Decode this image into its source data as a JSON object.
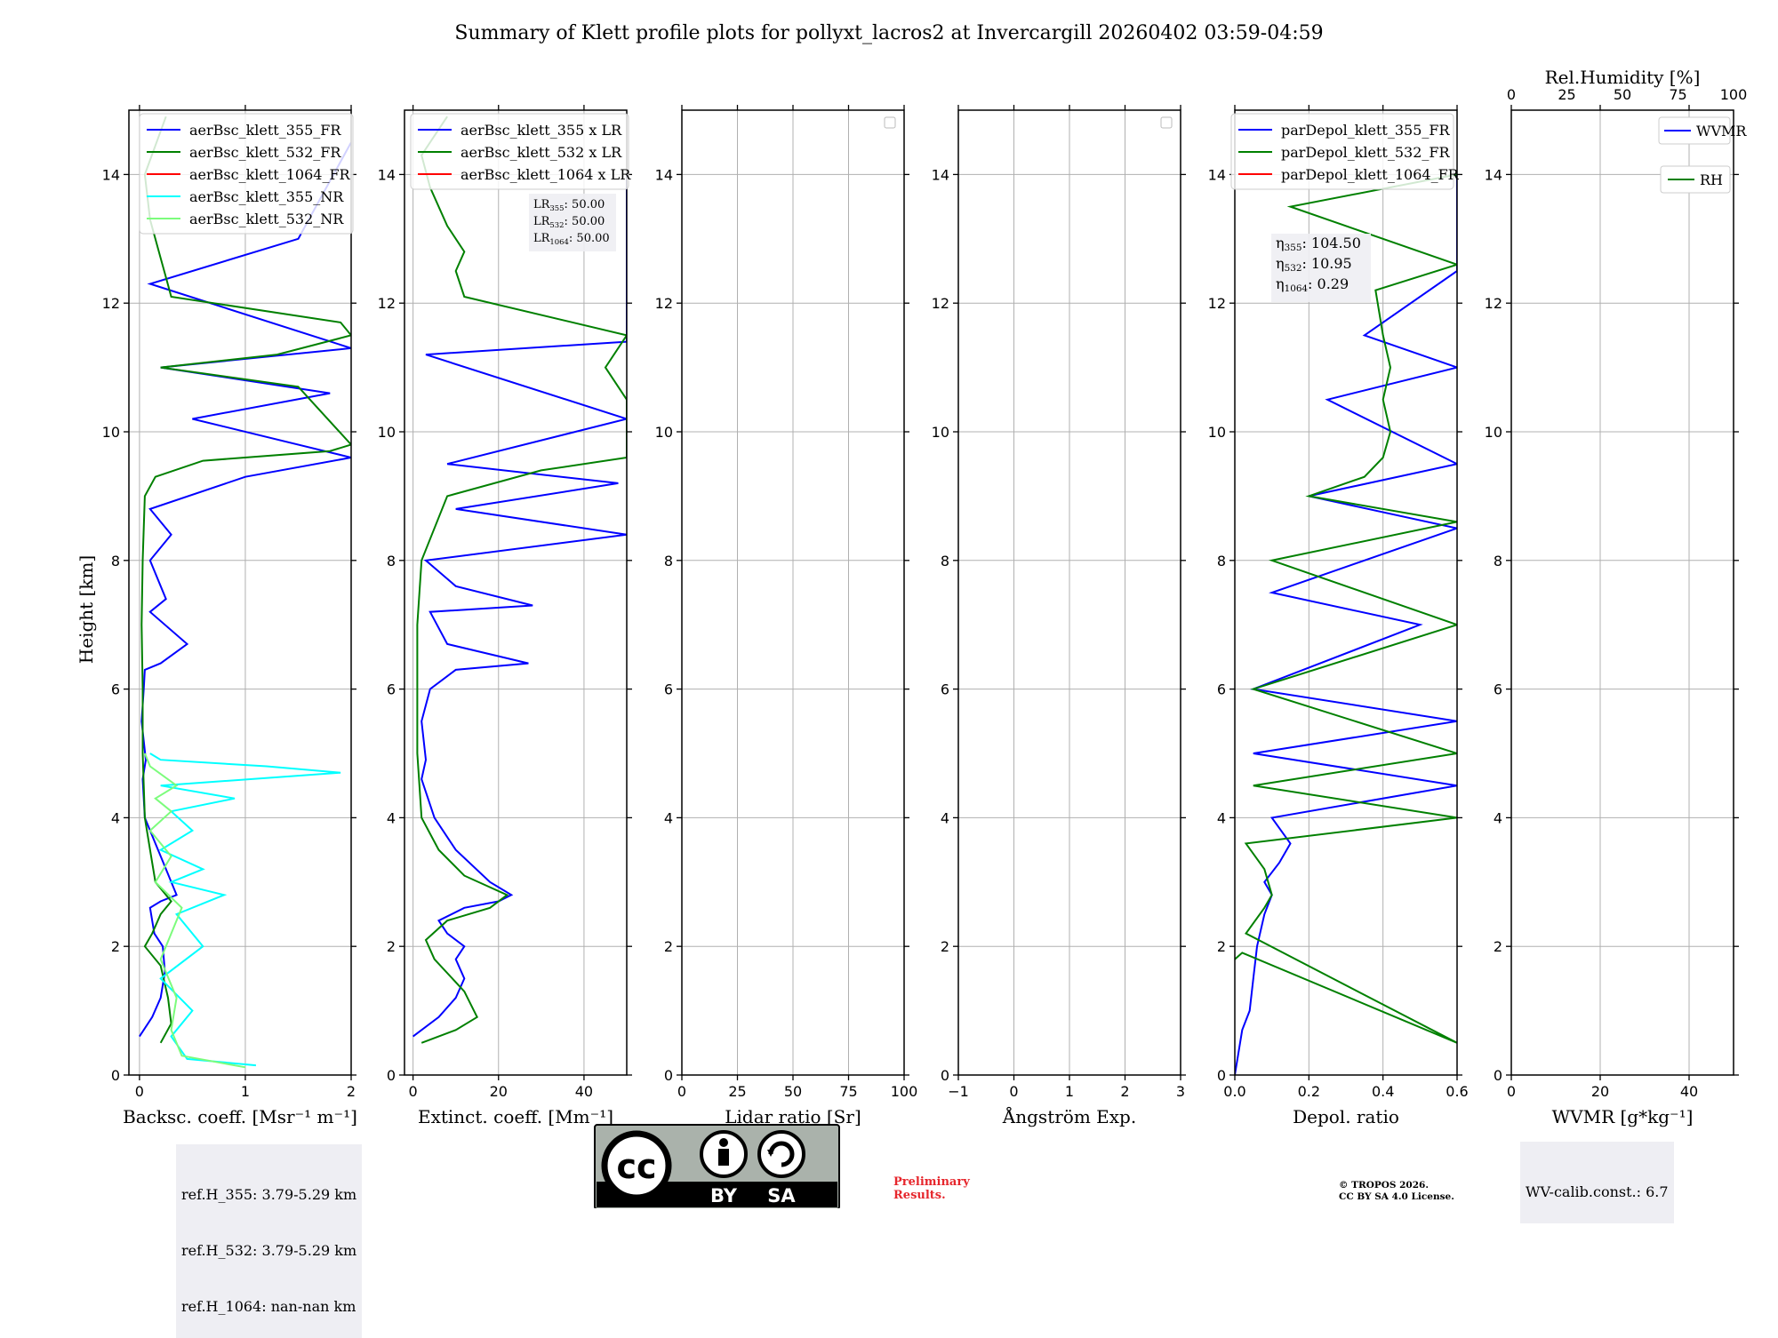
{
  "chart_data": {
    "type": "line",
    "title": "Summary of Klett profile plots for pollyxt_lacros2 at Invercargill 20260402 03:59-04:59",
    "ylabel": "Height [km]",
    "ylim": [
      0,
      15
    ],
    "yticks": [
      0,
      2,
      4,
      6,
      8,
      10,
      12,
      14
    ],
    "grid": true,
    "panels": [
      {
        "id": "bsc",
        "xlabel": "Backsc. coeff. [Msr⁻¹ m⁻¹]",
        "xlim": [
          -0.1,
          2.0
        ],
        "xticks": [
          0,
          1,
          2
        ],
        "legend": "top-right",
        "series": [
          {
            "name": "aerBsc_klett_355_FR",
            "color": "#0000ff",
            "x": [
              0.0,
              0.12,
              0.2,
              0.24,
              0.22,
              0.14,
              0.1,
              0.2,
              0.35,
              0.25,
              0.15,
              0.05,
              0.03,
              0.06,
              0.02,
              0.04,
              0.05,
              0.2,
              0.45,
              0.1,
              0.25,
              0.1,
              0.3,
              0.1,
              1.0,
              2.0,
              0.5,
              1.8,
              0.2,
              2.0,
              0.1,
              1.5,
              2.0
            ],
            "y": [
              0.6,
              0.9,
              1.2,
              1.6,
              2.0,
              2.2,
              2.6,
              2.7,
              2.8,
              3.2,
              3.6,
              4.0,
              4.6,
              4.9,
              5.5,
              6.0,
              6.3,
              6.4,
              6.7,
              7.2,
              7.4,
              8.0,
              8.4,
              8.8,
              9.3,
              9.6,
              10.2,
              10.6,
              11.0,
              11.3,
              12.3,
              13.0,
              14.5
            ]
          },
          {
            "name": "aerBsc_klett_532_FR",
            "color": "#008000",
            "x": [
              0.2,
              0.3,
              0.27,
              0.2,
              0.05,
              0.12,
              0.2,
              0.3,
              0.15,
              0.1,
              0.05,
              0.03,
              0.03,
              0.02,
              0.03,
              0.05,
              0.15,
              0.6,
              1.8,
              2.0,
              1.5,
              0.2,
              1.3,
              2.0,
              1.9,
              0.3,
              0.25,
              0.2,
              0.1,
              0.05,
              0.25
            ],
            "y": [
              0.5,
              0.8,
              1.2,
              1.7,
              2.0,
              2.2,
              2.5,
              2.7,
              3.0,
              3.5,
              4.0,
              5.0,
              6.0,
              7.0,
              8.0,
              9.0,
              9.3,
              9.55,
              9.7,
              9.8,
              10.7,
              11.0,
              11.2,
              11.5,
              11.7,
              12.1,
              12.4,
              12.7,
              13.3,
              14.0,
              14.9
            ]
          },
          {
            "name": "aerBsc_klett_1064_FR",
            "color": "#ff0000",
            "x": [],
            "y": []
          },
          {
            "name": "aerBsc_klett_355_NR",
            "color": "#00ffff",
            "x": [
              1.1,
              0.45,
              0.3,
              0.5,
              0.2,
              0.6,
              0.35,
              0.8,
              0.3,
              0.6,
              0.2,
              0.5,
              0.3,
              0.9,
              0.2,
              1.9,
              1.2,
              0.2,
              0.1
            ],
            "y": [
              0.15,
              0.25,
              0.6,
              1.0,
              1.5,
              2.0,
              2.5,
              2.8,
              3.0,
              3.2,
              3.5,
              3.8,
              4.1,
              4.3,
              4.5,
              4.7,
              4.8,
              4.9,
              5.0
            ]
          },
          {
            "name": "aerBsc_klett_532_NR",
            "color": "#7cfc7c",
            "x": [
              1.0,
              0.4,
              0.3,
              0.35,
              0.2,
              0.4,
              0.15,
              0.3,
              0.1,
              0.3,
              0.15,
              0.35,
              0.1,
              0.05
            ],
            "y": [
              0.12,
              0.3,
              0.7,
              1.2,
              1.8,
              2.6,
              3.0,
              3.4,
              3.8,
              4.1,
              4.3,
              4.5,
              4.8,
              5.0
            ]
          }
        ]
      },
      {
        "id": "ext",
        "xlabel": "Extinct. coeff. [Mm⁻¹]",
        "xlim": [
          -2,
          50
        ],
        "xticks": [
          0,
          20,
          40
        ],
        "legend": "top-right",
        "series": [
          {
            "name": "aerBsc_klett_355 x LR",
            "color": "#0000ff",
            "x": [
              0,
              6,
              10,
              12,
              10,
              12,
              8,
              6,
              12,
              20,
              23,
              18,
              10,
              5,
              2,
              3,
              2,
              4,
              10,
              27,
              8,
              4,
              28,
              10,
              3,
              50,
              10,
              48,
              8,
              50,
              3,
              50,
              50
            ],
            "y": [
              0.6,
              0.9,
              1.2,
              1.5,
              1.8,
              2.0,
              2.2,
              2.4,
              2.6,
              2.7,
              2.8,
              3.0,
              3.5,
              4.0,
              4.6,
              4.9,
              5.5,
              6.0,
              6.3,
              6.4,
              6.7,
              7.2,
              7.3,
              7.6,
              8.0,
              8.4,
              8.8,
              9.2,
              9.5,
              10.2,
              11.2,
              11.4,
              14.0
            ]
          },
          {
            "name": "aerBsc_klett_532 x LR",
            "color": "#008000",
            "x": [
              2,
              10,
              15,
              12,
              5,
              3,
              8,
              18,
              22,
              12,
              6,
              2,
              1,
              1,
              1,
              2,
              8,
              30,
              50,
              50,
              45,
              50,
              12,
              10,
              12,
              8,
              4,
              2,
              8
            ],
            "y": [
              0.5,
              0.7,
              0.9,
              1.3,
              1.8,
              2.1,
              2.4,
              2.6,
              2.8,
              3.1,
              3.5,
              4.0,
              5.0,
              6.0,
              7.0,
              8.0,
              9.0,
              9.4,
              9.6,
              10.5,
              11.0,
              11.5,
              12.1,
              12.5,
              12.8,
              13.2,
              13.8,
              14.3,
              14.9
            ]
          },
          {
            "name": "aerBsc_klett_1064 x LR",
            "color": "#ff0000",
            "x": [],
            "y": []
          }
        ],
        "annotation": [
          "LR355: 50.00",
          "LR532: 50.00",
          "LR1064: 50.00"
        ]
      },
      {
        "id": "lr",
        "xlabel": "Lidar ratio [Sr]",
        "xlim": [
          0,
          100
        ],
        "xticks": [
          0,
          25,
          50,
          75,
          100
        ],
        "legend": "top-right",
        "series": []
      },
      {
        "id": "ang",
        "xlabel": "Ångström Exp.",
        "xlim": [
          -1,
          3
        ],
        "xticks": [
          -1,
          0,
          1,
          2,
          3
        ],
        "legend": "top-right",
        "series": []
      },
      {
        "id": "depol",
        "xlabel": "Depol. ratio",
        "xlim": [
          0,
          0.6
        ],
        "xticks": [
          0.0,
          0.2,
          0.4,
          0.6
        ],
        "legend": "top-left",
        "series": [
          {
            "name": "parDepol_klett_355_FR",
            "color": "#0000ff",
            "x": [
              0.0,
              0.02,
              0.04,
              0.05,
              0.06,
              0.08,
              0.1,
              0.08,
              0.12,
              0.15,
              0.1,
              0.6,
              0.05,
              0.6,
              0.05,
              0.5,
              0.1,
              0.6,
              0.2,
              0.6,
              0.25,
              0.6,
              0.35,
              0.6,
              0.6
            ],
            "y": [
              0.0,
              0.7,
              1.0,
              1.5,
              2.0,
              2.5,
              2.8,
              3.0,
              3.3,
              3.6,
              4.0,
              4.5,
              5.0,
              5.5,
              6.0,
              7.0,
              7.5,
              8.5,
              9.0,
              9.5,
              10.5,
              11.0,
              11.5,
              12.5,
              14.0
            ]
          },
          {
            "name": "parDepol_klett_532_FR",
            "color": "#008000",
            "x": [
              0.0,
              0.02,
              0.6,
              0.03,
              0.08,
              0.1,
              0.08,
              0.03,
              0.6,
              0.05,
              0.6,
              0.05,
              0.6,
              0.1,
              0.6,
              0.2,
              0.35,
              0.4,
              0.42,
              0.4,
              0.42,
              0.4,
              0.38,
              0.6,
              0.15,
              0.6
            ],
            "y": [
              1.8,
              1.9,
              0.5,
              2.2,
              2.6,
              2.8,
              3.2,
              3.6,
              4.0,
              4.5,
              5.0,
              6.0,
              7.0,
              8.0,
              8.6,
              9.0,
              9.3,
              9.6,
              10.0,
              10.5,
              11.0,
              11.5,
              12.2,
              12.6,
              13.5,
              14.0
            ]
          },
          {
            "name": "parDepol_klett_1064_FR",
            "color": "#ff0000",
            "x": [],
            "y": []
          }
        ],
        "annotation": [
          "η355: 104.50",
          "η532: 10.95",
          "η1064: 0.29"
        ]
      },
      {
        "id": "wv",
        "xlabel": "WVMR [g*kg⁻¹]",
        "xlim": [
          0,
          50
        ],
        "xticks": [
          0,
          20,
          40
        ],
        "top_xlabel": "Rel.Humidity [%]",
        "top_xlim": [
          0,
          100
        ],
        "top_xticks": [
          0,
          25,
          50,
          75,
          100
        ],
        "legend": "top-right",
        "series": [
          {
            "name": "WVMR",
            "color": "#0000ff",
            "x": [],
            "y": []
          },
          {
            "name": "RH",
            "color": "#008000",
            "x": [],
            "y": []
          }
        ]
      }
    ]
  },
  "ref_heights": {
    "h355": "ref.H_355: 3.79-5.29 km",
    "h532": "ref.H_532: 3.79-5.29 km",
    "h1064": "ref.H_1064: nan-nan km"
  },
  "wv_calib": "WV-calib.const.: 6.7",
  "license_badge": {
    "cc": "cc",
    "by": "BY",
    "sa": "SA"
  },
  "preliminary": {
    "line1": "Preliminary",
    "line2": "Results."
  },
  "copyright": {
    "line1": "© TROPOS 2026.",
    "line2": "CC BY SA 4.0 License."
  },
  "colors": {
    "bg": "#ffffff",
    "grid": "#b0b0b0",
    "note_bg": "#eeeef3",
    "prelim": "#e6262c"
  }
}
